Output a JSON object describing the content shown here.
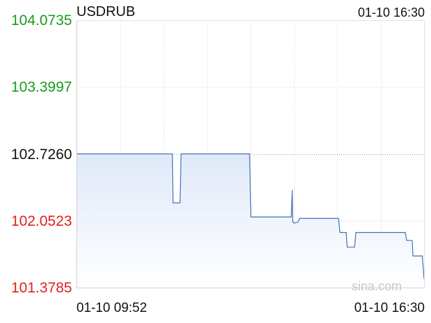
{
  "chart_data": {
    "type": "line",
    "title": "USDRUB",
    "time_label": "01-10 16:30",
    "x_start_label": "01-10 09:52",
    "x_end_label": "01-10 16:30",
    "ylim": [
      101.3785,
      104.0735
    ],
    "reference": 102.726,
    "yticks": [
      {
        "label": "104.0735",
        "value": 104.0735,
        "color": "#1a9b1a"
      },
      {
        "label": "103.3997",
        "value": 103.3997,
        "color": "#1a9b1a"
      },
      {
        "label": "102.7260",
        "value": 102.726,
        "color": "#111111"
      },
      {
        "label": "102.0523",
        "value": 102.0523,
        "color": "#e0201e"
      },
      {
        "label": "101.3785",
        "value": 101.3785,
        "color": "#e0201e"
      }
    ],
    "grid": true,
    "watermark": "sina.com",
    "line_color": "#3f72b8",
    "x": [
      0,
      0.276,
      0.276,
      0.278,
      0.298,
      0.301,
      0.498,
      0.502,
      0.618,
      0.621,
      0.622,
      0.626,
      0.637,
      0.642,
      0.754,
      0.758,
      0.776,
      0.779,
      0.8,
      0.804,
      0.946,
      0.95,
      0.966,
      0.968,
      0.995,
      1.0
    ],
    "values": [
      102.726,
      102.726,
      102.722,
      102.232,
      102.232,
      102.726,
      102.726,
      102.09,
      102.09,
      102.362,
      102.042,
      102.028,
      102.038,
      102.076,
      102.076,
      101.934,
      101.934,
      101.786,
      101.786,
      101.934,
      101.934,
      101.853,
      101.853,
      101.697,
      101.697,
      101.465
    ]
  }
}
